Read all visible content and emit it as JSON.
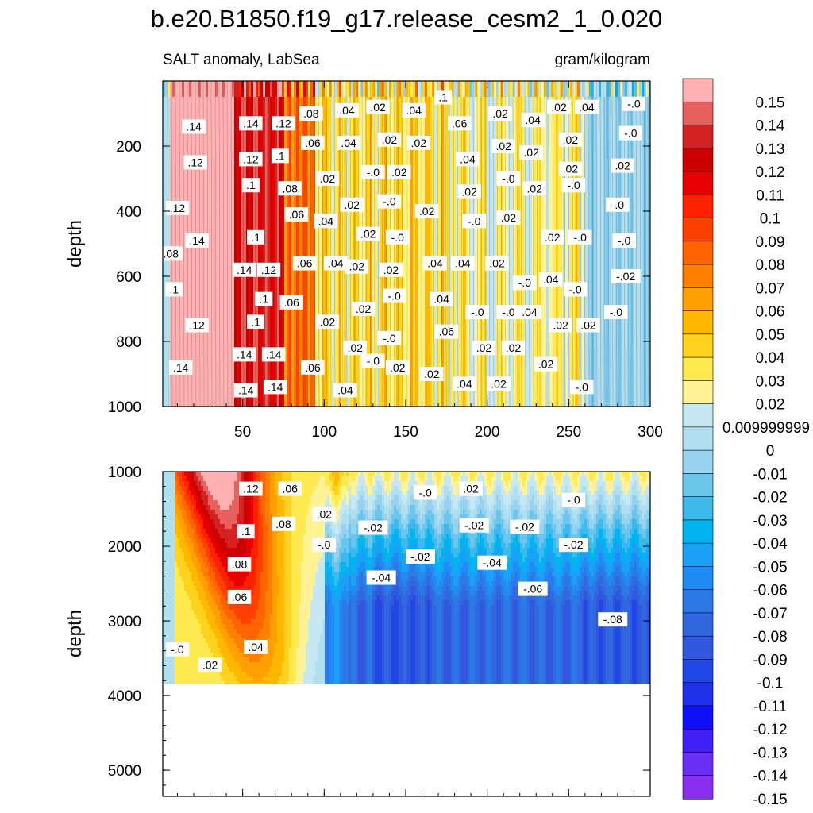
{
  "title": "b.e20.B1850.f19_g17.release_cesm2_1_0.020",
  "chart_data": [
    {
      "type": "heatmap",
      "panel": "upper",
      "subtitle_left": "SALT anomaly, LabSea",
      "subtitle_right": "gram/kilogram",
      "xlabel": "",
      "ylabel": "depth",
      "xlim": [
        1,
        300
      ],
      "ylim": [
        1000,
        0
      ],
      "xticks": [
        "50",
        "100",
        "150",
        "200",
        "250",
        "300"
      ],
      "yticks": [
        "200",
        "400",
        "600",
        "800",
        "1000"
      ],
      "contour_labels": [
        {
          "text": ".14",
          "x": 20,
          "y": 140
        },
        {
          "text": ".12",
          "x": 21,
          "y": 250
        },
        {
          "text": ".12",
          "x": 10,
          "y": 390
        },
        {
          "text": ".14",
          "x": 22,
          "y": 490
        },
        {
          "text": ".08",
          "x": 6,
          "y": 530
        },
        {
          "text": ".1",
          "x": 8,
          "y": 640
        },
        {
          "text": ".12",
          "x": 22,
          "y": 750
        },
        {
          "text": ".14",
          "x": 12,
          "y": 880
        },
        {
          "text": ".14",
          "x": 55,
          "y": 130
        },
        {
          "text": ".12",
          "x": 55,
          "y": 240
        },
        {
          "text": ".1",
          "x": 55,
          "y": 320
        },
        {
          "text": ".1",
          "x": 58,
          "y": 480
        },
        {
          "text": ".14",
          "x": 51,
          "y": 580
        },
        {
          "text": ".1",
          "x": 63,
          "y": 670
        },
        {
          "text": ".1",
          "x": 58,
          "y": 740
        },
        {
          "text": ".14",
          "x": 51,
          "y": 840
        },
        {
          "text": ".14",
          "x": 52,
          "y": 950
        },
        {
          "text": ".12",
          "x": 75,
          "y": 130
        },
        {
          "text": ".1",
          "x": 73,
          "y": 230
        },
        {
          "text": ".08",
          "x": 79,
          "y": 330
        },
        {
          "text": ".12",
          "x": 66,
          "y": 580
        },
        {
          "text": ".14",
          "x": 69,
          "y": 840
        },
        {
          "text": ".14",
          "x": 70,
          "y": 940
        },
        {
          "text": ".08",
          "x": 92,
          "y": 100
        },
        {
          "text": ".06",
          "x": 93,
          "y": 190
        },
        {
          "text": ".06",
          "x": 83,
          "y": 410
        },
        {
          "text": ".06",
          "x": 88,
          "y": 560
        },
        {
          "text": ".06",
          "x": 80,
          "y": 680
        },
        {
          "text": ".06",
          "x": 93,
          "y": 880
        },
        {
          "text": ".04",
          "x": 114,
          "y": 90
        },
        {
          "text": ".04",
          "x": 115,
          "y": 190
        },
        {
          "text": ".02",
          "x": 102,
          "y": 300
        },
        {
          "text": ".04",
          "x": 101,
          "y": 430
        },
        {
          "text": ".04",
          "x": 107,
          "y": 560
        },
        {
          "text": ".02",
          "x": 102,
          "y": 740
        },
        {
          "text": ".02",
          "x": 117,
          "y": 380
        },
        {
          "text": ".02",
          "x": 119,
          "y": 820
        },
        {
          "text": ".04",
          "x": 113,
          "y": 950
        },
        {
          "text": ".02",
          "x": 133,
          "y": 80
        },
        {
          "text": ".02",
          "x": 140,
          "y": 180
        },
        {
          "text": ".02",
          "x": 127,
          "y": 470
        },
        {
          "text": ".02",
          "x": 120,
          "y": 570
        },
        {
          "text": "-.0",
          "x": 130,
          "y": 280
        },
        {
          "text": "-.0",
          "x": 140,
          "y": 370
        },
        {
          "text": ".02",
          "x": 146,
          "y": 280
        },
        {
          "text": "-.0",
          "x": 145,
          "y": 480
        },
        {
          "text": ".02",
          "x": 141,
          "y": 580
        },
        {
          "text": ".02",
          "x": 124,
          "y": 700
        },
        {
          "text": "-.0",
          "x": 143,
          "y": 660
        },
        {
          "text": "-.0",
          "x": 140,
          "y": 790
        },
        {
          "text": "-.0",
          "x": 130,
          "y": 860
        },
        {
          "text": ".02",
          "x": 145,
          "y": 880
        },
        {
          "text": ".04",
          "x": 155,
          "y": 90
        },
        {
          "text": ".02",
          "x": 158,
          "y": 190
        },
        {
          "text": ".02",
          "x": 163,
          "y": 400
        },
        {
          "text": ".04",
          "x": 168,
          "y": 560
        },
        {
          "text": ".04",
          "x": 172,
          "y": 670
        },
        {
          "text": ".06",
          "x": 175,
          "y": 770
        },
        {
          "text": ".02",
          "x": 166,
          "y": 900
        },
        {
          "text": ".1",
          "x": 173,
          "y": 50
        },
        {
          "text": ".06",
          "x": 183,
          "y": 130
        },
        {
          "text": ".04",
          "x": 188,
          "y": 240
        },
        {
          "text": ".02",
          "x": 189,
          "y": 340
        },
        {
          "text": ".04",
          "x": 185,
          "y": 560
        },
        {
          "text": "-.0",
          "x": 192,
          "y": 430
        },
        {
          "text": "-.0",
          "x": 194,
          "y": 710
        },
        {
          "text": ".02",
          "x": 198,
          "y": 820
        },
        {
          "text": ".04",
          "x": 186,
          "y": 930
        },
        {
          "text": ".02",
          "x": 208,
          "y": 100
        },
        {
          "text": ".02",
          "x": 210,
          "y": 200
        },
        {
          "text": "-.0",
          "x": 213,
          "y": 300
        },
        {
          "text": ".02",
          "x": 213,
          "y": 420
        },
        {
          "text": ".02",
          "x": 206,
          "y": 560
        },
        {
          "text": "-.0",
          "x": 213,
          "y": 710
        },
        {
          "text": ".02",
          "x": 216,
          "y": 820
        },
        {
          "text": ".02",
          "x": 207,
          "y": 930
        },
        {
          "text": ".04",
          "x": 228,
          "y": 120
        },
        {
          "text": ".02",
          "x": 227,
          "y": 220
        },
        {
          "text": ".02",
          "x": 229,
          "y": 330
        },
        {
          "text": "-.0",
          "x": 223,
          "y": 620
        },
        {
          "text": ".04",
          "x": 226,
          "y": 710
        },
        {
          "text": ".02",
          "x": 240,
          "y": 480
        },
        {
          "text": ".04",
          "x": 239,
          "y": 610
        },
        {
          "text": ".02",
          "x": 245,
          "y": 750
        },
        {
          "text": ".02",
          "x": 236,
          "y": 870
        },
        {
          "text": ".02",
          "x": 244,
          "y": 80
        },
        {
          "text": ".02",
          "x": 251,
          "y": 180
        },
        {
          "text": ".02",
          "x": 251,
          "y": 270
        },
        {
          "text": "-.0",
          "x": 253,
          "y": 320
        },
        {
          "text": "-.0",
          "x": 257,
          "y": 480
        },
        {
          "text": "-.0",
          "x": 254,
          "y": 640
        },
        {
          "text": ".02",
          "x": 262,
          "y": 750
        },
        {
          "text": "-.0",
          "x": 258,
          "y": 940
        },
        {
          "text": ".04",
          "x": 261,
          "y": 80
        },
        {
          "text": "-.0",
          "x": 290,
          "y": 70
        },
        {
          "text": "-.0",
          "x": 288,
          "y": 160
        },
        {
          "text": ".02",
          "x": 283,
          "y": 260
        },
        {
          "text": "-.0",
          "x": 280,
          "y": 380
        },
        {
          "text": "-.0",
          "x": 284,
          "y": 490
        },
        {
          "text": "-.02",
          "x": 285,
          "y": 600
        },
        {
          "text": "-.0",
          "x": 279,
          "y": 710
        }
      ]
    },
    {
      "type": "heatmap",
      "panel": "lower",
      "xlabel": "",
      "ylabel": "depth",
      "xlim": [
        1,
        300
      ],
      "ylim": [
        5350,
        1000
      ],
      "data_bottom_depth": 3850,
      "yticks": [
        "1000",
        "2000",
        "3000",
        "4000",
        "5000"
      ],
      "contour_labels": [
        {
          "text": ".12",
          "x": 55,
          "y": 1230
        },
        {
          "text": ".06",
          "x": 79,
          "y": 1230
        },
        {
          "text": ".02",
          "x": 100,
          "y": 1570
        },
        {
          "text": ".1",
          "x": 52,
          "y": 1800
        },
        {
          "text": ".08",
          "x": 75,
          "y": 1700
        },
        {
          "text": "-.0",
          "x": 100,
          "y": 1980
        },
        {
          "text": ".08",
          "x": 48,
          "y": 2240
        },
        {
          "text": ".06",
          "x": 48,
          "y": 2680
        },
        {
          "text": ".04",
          "x": 58,
          "y": 3350
        },
        {
          "text": "-.0",
          "x": 10,
          "y": 3380
        },
        {
          "text": ".02",
          "x": 30,
          "y": 3590
        },
        {
          "text": "-.0",
          "x": 162,
          "y": 1280
        },
        {
          "text": ".02",
          "x": 190,
          "y": 1230
        },
        {
          "text": "-.02",
          "x": 130,
          "y": 1750
        },
        {
          "text": "-.02",
          "x": 159,
          "y": 2140
        },
        {
          "text": "-.04",
          "x": 135,
          "y": 2420
        },
        {
          "text": "-.02",
          "x": 192,
          "y": 1720
        },
        {
          "text": "-.04",
          "x": 203,
          "y": 2220
        },
        {
          "text": "-.02",
          "x": 223,
          "y": 1740
        },
        {
          "text": "-.0",
          "x": 253,
          "y": 1380
        },
        {
          "text": "-.02",
          "x": 253,
          "y": 1980
        },
        {
          "text": "-.06",
          "x": 228,
          "y": 2570
        },
        {
          "text": "-.08",
          "x": 277,
          "y": 2980
        }
      ]
    }
  ],
  "colorbar": {
    "colors": [
      "#ffb1b1",
      "#e8605e",
      "#d42222",
      "#cc0000",
      "#e60000",
      "#ff2000",
      "#ff4000",
      "#ff6400",
      "#ff8000",
      "#ffa000",
      "#ffb700",
      "#ffd21f",
      "#ffea4f",
      "#fff396",
      "#c6e8f3",
      "#b0dff0",
      "#99d2ee",
      "#6bc6ec",
      "#3fb8ec",
      "#00b4ef",
      "#1ba0f5",
      "#208bf2",
      "#2b78e7",
      "#3168df",
      "#3257df",
      "#2048e6",
      "#2030e8",
      "#1010f8",
      "#4020f5",
      "#6a2ff0",
      "#8a2ef0"
    ],
    "labels": [
      "0.15",
      "0.14",
      "0.13",
      "0.12",
      "0.11",
      "0.1",
      "0.09",
      "0.08",
      "0.07",
      "0.06",
      "0.05",
      "0.04",
      "0.03",
      "0.02",
      "0.009999999",
      "0",
      "-0.01",
      "-0.02",
      "-0.03",
      "-0.04",
      "-0.05",
      "-0.06",
      "-0.07",
      "-0.08",
      "-0.09",
      "-0.1",
      "-0.11",
      "-0.12",
      "-0.13",
      "-0.14",
      "-0.15"
    ]
  }
}
